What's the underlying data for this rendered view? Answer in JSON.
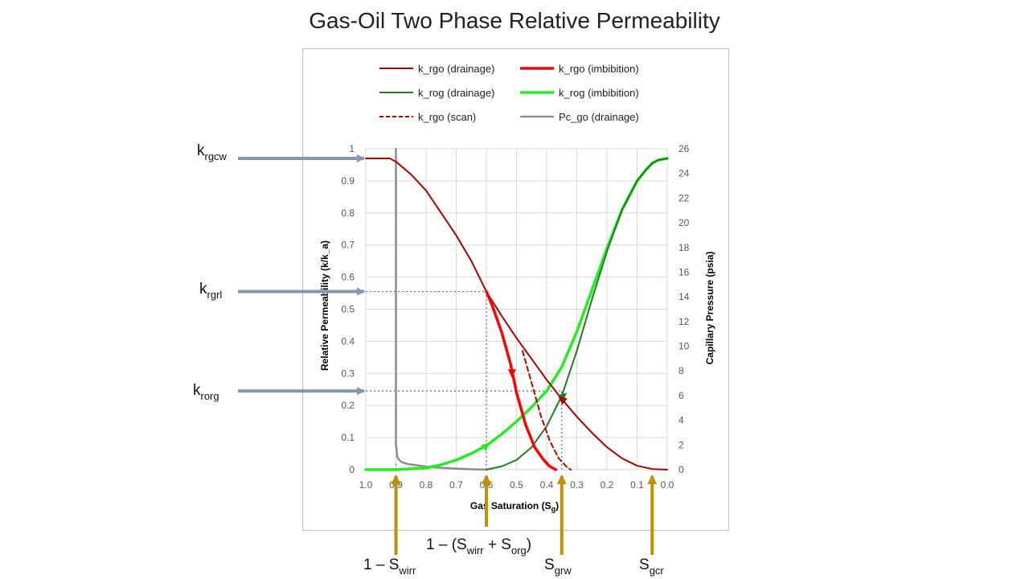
{
  "chart_data": {
    "type": "line",
    "title": "Gas-Oil Two Phase Relative Permeability",
    "xlabel": "Gas Saturation (Sg)",
    "xlabel_main": "Gas Saturation (S",
    "xlabel_sub": "g",
    "xlabel_end": ")",
    "ylabel": "Relative Permeability (k/k_a)",
    "y2label": "Capillary Pressure (psia)",
    "xlim": [
      1.0,
      0.0
    ],
    "x_reversed": true,
    "ylim": [
      0,
      1
    ],
    "y2lim": [
      0,
      26
    ],
    "x_ticks": [
      "1.0",
      "0.9",
      "0.8",
      "0.7",
      "0.6",
      "0.5",
      "0.4",
      "0.3",
      "0.2",
      "0.1",
      "0.0"
    ],
    "y_ticks": [
      "0",
      "0.1",
      "0.2",
      "0.3",
      "0.4",
      "0.5",
      "0.6",
      "0.7",
      "0.8",
      "0.9",
      "1"
    ],
    "y2_ticks": [
      "0",
      "2",
      "4",
      "6",
      "8",
      "10",
      "12",
      "14",
      "16",
      "18",
      "20",
      "22",
      "24",
      "26"
    ],
    "grid": true,
    "legend_position": "top",
    "series": [
      {
        "name": "k_rgo (drainage)",
        "color": "#b00000",
        "style": "solid-thin",
        "axis": "left",
        "x": [
          1.0,
          0.92,
          0.9,
          0.85,
          0.8,
          0.75,
          0.7,
          0.65,
          0.6,
          0.55,
          0.5,
          0.45,
          0.4,
          0.35,
          0.3,
          0.25,
          0.2,
          0.15,
          0.1,
          0.05,
          0.0
        ],
        "y": [
          0.97,
          0.97,
          0.96,
          0.92,
          0.87,
          0.8,
          0.73,
          0.65,
          0.555,
          0.48,
          0.41,
          0.345,
          0.28,
          0.22,
          0.165,
          0.115,
          0.07,
          0.035,
          0.012,
          0.002,
          0.0
        ]
      },
      {
        "name": "k_rgo (imbibition)",
        "color": "#ff0000",
        "style": "solid-thick",
        "axis": "left",
        "x": [
          0.6,
          0.58,
          0.55,
          0.52,
          0.5,
          0.47,
          0.44,
          0.41,
          0.39,
          0.37
        ],
        "y": [
          0.555,
          0.51,
          0.43,
          0.33,
          0.24,
          0.14,
          0.07,
          0.03,
          0.01,
          0.0
        ]
      },
      {
        "name": "k_rog (drainage)",
        "color": "#1e7d1e",
        "style": "solid-thin",
        "axis": "left",
        "x": [
          0.6,
          0.55,
          0.5,
          0.45,
          0.4,
          0.35,
          0.3,
          0.25,
          0.2,
          0.15,
          0.1,
          0.07,
          0.05,
          0.03,
          0.0
        ],
        "y": [
          0.0,
          0.01,
          0.03,
          0.07,
          0.135,
          0.23,
          0.37,
          0.53,
          0.68,
          0.81,
          0.9,
          0.935,
          0.955,
          0.965,
          0.97
        ]
      },
      {
        "name": "k_rog (imbibition)",
        "color": "#22ee22",
        "style": "solid-thick",
        "axis": "left",
        "x": [
          1.0,
          0.9,
          0.8,
          0.75,
          0.7,
          0.65,
          0.6,
          0.55,
          0.5,
          0.45,
          0.4,
          0.35,
          0.3,
          0.25,
          0.2,
          0.15,
          0.1,
          0.07,
          0.05,
          0.03,
          0.0
        ],
        "y": [
          0.0,
          0.0,
          0.005,
          0.015,
          0.03,
          0.05,
          0.075,
          0.11,
          0.15,
          0.195,
          0.245,
          0.32,
          0.43,
          0.56,
          0.69,
          0.81,
          0.9,
          0.935,
          0.955,
          0.965,
          0.97
        ]
      },
      {
        "name": "k_rgo (scan)",
        "color": "#c00000",
        "style": "dashed",
        "axis": "left",
        "x": [
          0.48,
          0.45,
          0.42,
          0.39,
          0.36,
          0.33,
          0.32
        ],
        "y": [
          0.37,
          0.27,
          0.17,
          0.09,
          0.035,
          0.005,
          0.0
        ]
      },
      {
        "name": "Pc_go (drainage)",
        "color": "#8c8c8c",
        "style": "solid-gray",
        "axis": "right",
        "x": [
          0.9,
          0.9,
          0.895,
          0.89,
          0.88,
          0.86,
          0.83,
          0.8,
          0.75,
          0.7,
          0.65,
          0.6
        ],
        "y": [
          26,
          2.0,
          1.0,
          0.8,
          0.6,
          0.45,
          0.35,
          0.25,
          0.15,
          0.08,
          0.03,
          0.0
        ]
      }
    ],
    "reference_lines": [
      {
        "type": "horizontal",
        "y": 0.555,
        "x_from": 1.0,
        "x_to": 0.6
      },
      {
        "type": "horizontal",
        "y": 0.245,
        "x_from": 1.0,
        "x_to": 0.35
      },
      {
        "type": "vertical",
        "x": 0.6,
        "y_from": 0,
        "y_to": 0.555
      },
      {
        "type": "vertical",
        "x": 0.35,
        "y_from": 0,
        "y_to": 0.245
      },
      {
        "type": "vertical",
        "x": 0.9,
        "y_from": 0,
        "y_to": 0.02
      }
    ],
    "direction_arrows": [
      {
        "series": "k_rgo (imbibition)",
        "x": 0.515,
        "y": 0.3,
        "dir": "down"
      },
      {
        "series": "k_rog (imbibition)",
        "x": 0.6,
        "y": 0.075,
        "dir": "right-up"
      },
      {
        "series": "k_rog (drainage)",
        "x": 0.345,
        "y": 0.23,
        "dir": "right-up"
      },
      {
        "series": "k_rgo (drainage)",
        "x": 0.35,
        "y": 0.22,
        "dir": "left-up"
      }
    ]
  },
  "annotations": [
    {
      "id": "krgcw",
      "main": "k",
      "sub": "rgcw",
      "value": 0.97
    },
    {
      "id": "krgrl",
      "main": "k",
      "sub": "rgrl",
      "value": 0.555
    },
    {
      "id": "krorg",
      "main": "k",
      "sub": "rorg",
      "value": 0.245
    },
    {
      "id": "swirr",
      "pre": "1 – S",
      "sub": "wirr",
      "post": "",
      "x": 0.9
    },
    {
      "id": "sorg",
      "pre": "1 – (S",
      "sub": "wirr",
      "mid": " + S",
      "sub2": "org",
      "post": ")",
      "x": 0.6
    },
    {
      "id": "sgrw",
      "pre": "S",
      "sub": "grw",
      "post": "",
      "x": 0.35
    },
    {
      "id": "sgcr",
      "pre": "S",
      "sub": "gcr",
      "post": "",
      "x": 0.05
    }
  ],
  "colors": {
    "annotation_arrow_blue": "#8496b0",
    "annotation_arrow_gold": "#bf9000",
    "gridline": "#d9d9d9",
    "frame": "#bfbfbf"
  }
}
